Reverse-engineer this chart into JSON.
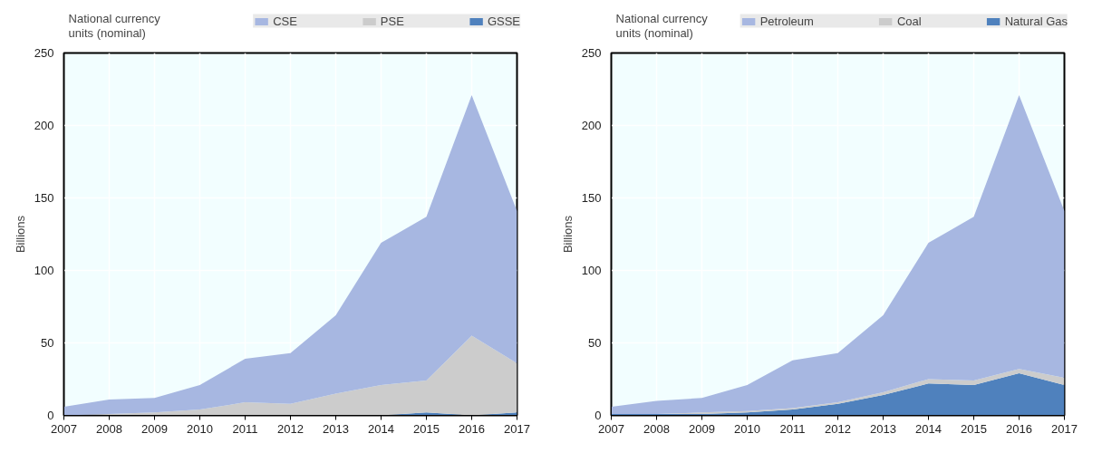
{
  "chart_data": [
    {
      "type": "area",
      "stacked": true,
      "ylabel": "Billions",
      "annotations": [
        "National currency units (nominal)"
      ],
      "x": [
        2007,
        2008,
        2009,
        2010,
        2011,
        2012,
        2013,
        2014,
        2015,
        2016,
        2017
      ],
      "xlim": [
        2007,
        2017
      ],
      "xticks": [
        2007,
        2008,
        2009,
        2010,
        2011,
        2012,
        2013,
        2014,
        2015,
        2016,
        2017
      ],
      "ylim": [
        0,
        250
      ],
      "yticks": [
        0,
        50,
        100,
        150,
        200,
        250
      ],
      "grid": true,
      "legend": "top",
      "series": [
        {
          "name": "GSSE",
          "color": "#4f81bd",
          "values": [
            0,
            0,
            0,
            0,
            0,
            0,
            0,
            0,
            2,
            0,
            2
          ]
        },
        {
          "name": "PSE",
          "color": "#cccccc",
          "values": [
            0,
            1,
            2,
            4,
            9,
            8,
            15,
            21,
            22,
            55,
            34
          ]
        },
        {
          "name": "CSE",
          "color": "#a7b7e1",
          "values": [
            6,
            10,
            10,
            17,
            30,
            35,
            54,
            98,
            113,
            166,
            105
          ]
        }
      ]
    },
    {
      "type": "area",
      "stacked": true,
      "ylabel": "Billions",
      "annotations": [
        "National currency units (nominal)"
      ],
      "x": [
        2007,
        2008,
        2009,
        2010,
        2011,
        2012,
        2013,
        2014,
        2015,
        2016,
        2017
      ],
      "xlim": [
        2007,
        2017
      ],
      "xticks": [
        2007,
        2008,
        2009,
        2010,
        2011,
        2012,
        2013,
        2014,
        2015,
        2016,
        2017
      ],
      "ylim": [
        0,
        250
      ],
      "yticks": [
        0,
        50,
        100,
        150,
        200,
        250
      ],
      "grid": true,
      "legend": "top",
      "series": [
        {
          "name": "Natural Gas",
          "color": "#4f81bd",
          "values": [
            1,
            1,
            1,
            2,
            4,
            8,
            14,
            22,
            21,
            29,
            21
          ]
        },
        {
          "name": "Coal",
          "color": "#cccccc",
          "values": [
            0,
            0,
            1,
            1,
            1,
            1,
            2,
            3,
            3,
            3,
            5
          ]
        },
        {
          "name": "Petroleum",
          "color": "#a7b7e1",
          "values": [
            5,
            9,
            10,
            18,
            33,
            34,
            53,
            94,
            113,
            189,
            115
          ]
        }
      ]
    }
  ]
}
